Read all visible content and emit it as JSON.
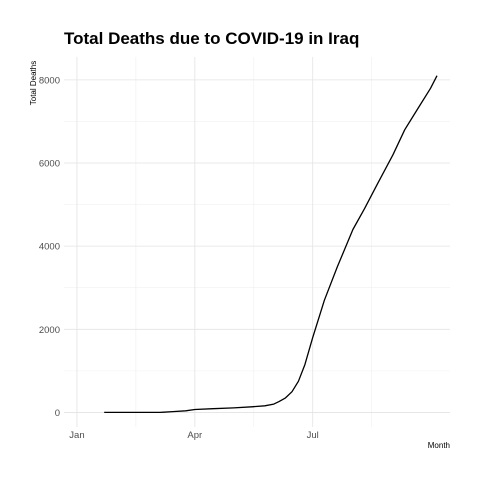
{
  "chart_data": {
    "type": "line",
    "title": "Total Deaths due to COVID-19 in Iraq",
    "xlabel": "Month",
    "ylabel": "Total Deaths",
    "x_ticks": [
      {
        "date": "2020-01-01",
        "label": "Jan"
      },
      {
        "date": "2020-04-01",
        "label": "Apr"
      },
      {
        "date": "2020-07-01",
        "label": "Jul"
      }
    ],
    "y_ticks": [
      0,
      2000,
      4000,
      6000,
      8000
    ],
    "xlim": [
      "2019-12-22",
      "2020-10-15"
    ],
    "ylim": [
      -350,
      8550
    ],
    "grid": true,
    "legend": "none",
    "series": [
      {
        "x": [
          "2020-01-22",
          "2020-02-15",
          "2020-03-05",
          "2020-03-08",
          "2020-03-15",
          "2020-03-25",
          "2020-04-01",
          "2020-04-15",
          "2020-05-01",
          "2020-05-15",
          "2020-05-25",
          "2020-06-01",
          "2020-06-05",
          "2020-06-10",
          "2020-06-15",
          "2020-06-20",
          "2020-06-25",
          "2020-07-01",
          "2020-07-10",
          "2020-07-20",
          "2020-08-01",
          "2020-08-10",
          "2020-08-20",
          "2020-09-01",
          "2020-09-10",
          "2020-09-20",
          "2020-09-30",
          "2020-10-05"
        ],
        "values": [
          0,
          0,
          0,
          5,
          20,
          40,
          70,
          90,
          110,
          135,
          160,
          200,
          260,
          350,
          500,
          750,
          1150,
          1800,
          2700,
          3500,
          4400,
          4900,
          5500,
          6200,
          6800,
          7300,
          7800,
          8100
        ]
      }
    ]
  }
}
